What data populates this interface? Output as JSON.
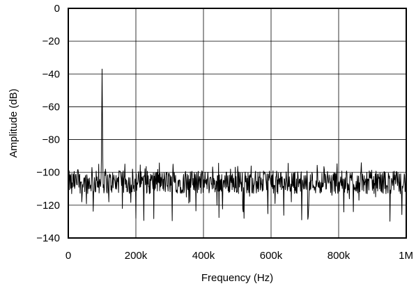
{
  "chart_data": {
    "type": "line",
    "title": "",
    "xlabel": "Frequency (Hz)",
    "ylabel": "Amplitude (dB)",
    "xlim": [
      0,
      1000000
    ],
    "ylim": [
      -140,
      0
    ],
    "grid": true,
    "x_ticks": [
      0,
      200000,
      400000,
      600000,
      800000,
      1000000
    ],
    "x_tick_labels": [
      "0",
      "200k",
      "400k",
      "600k",
      "800k",
      "1M"
    ],
    "y_ticks": [
      0,
      -20,
      -40,
      -60,
      -80,
      -100,
      -120,
      -140
    ],
    "y_tick_labels": [
      "0",
      "−20",
      "−40",
      "−60",
      "−80",
      "−100",
      "−120",
      "−140"
    ],
    "line_color": "#000000",
    "series": [
      {
        "x": [
          0,
          10000,
          20000,
          30000,
          40000,
          50000,
          60000,
          70000,
          80000,
          90000,
          98000,
          100000,
          102000,
          110000,
          120000,
          130000,
          140000,
          150000,
          160000,
          170000,
          180000,
          190000,
          200000,
          220000,
          240000,
          260000,
          280000,
          300000,
          310000,
          320000,
          340000,
          360000,
          380000,
          400000,
          420000,
          440000,
          460000,
          480000,
          500000,
          510000,
          520000,
          540000,
          560000,
          580000,
          600000,
          620000,
          640000,
          660000,
          680000,
          700000,
          710000,
          720000,
          740000,
          760000,
          780000,
          800000,
          820000,
          840000,
          860000,
          880000,
          900000,
          920000,
          940000,
          960000,
          980000,
          1000000
        ],
        "values": [
          -105,
          -113,
          -108,
          -100,
          -118,
          -103,
          -110,
          -97,
          -112,
          -95,
          -92,
          -37,
          -90,
          -98,
          -118,
          -106,
          -110,
          -99,
          -122,
          -104,
          -112,
          -98,
          -128,
          -105,
          -113,
          -100,
          -110,
          -108,
          -95,
          -112,
          -104,
          -118,
          -100,
          -110,
          -103,
          -120,
          -105,
          -98,
          -112,
          -107,
          -128,
          -103,
          -110,
          -100,
          -108,
          -113,
          -104,
          -118,
          -102,
          -110,
          -127,
          -105,
          -109,
          -101,
          -114,
          -106,
          -110,
          -100,
          -117,
          -104,
          -111,
          -103,
          -113,
          -108,
          -101,
          -116
        ]
      }
    ]
  }
}
